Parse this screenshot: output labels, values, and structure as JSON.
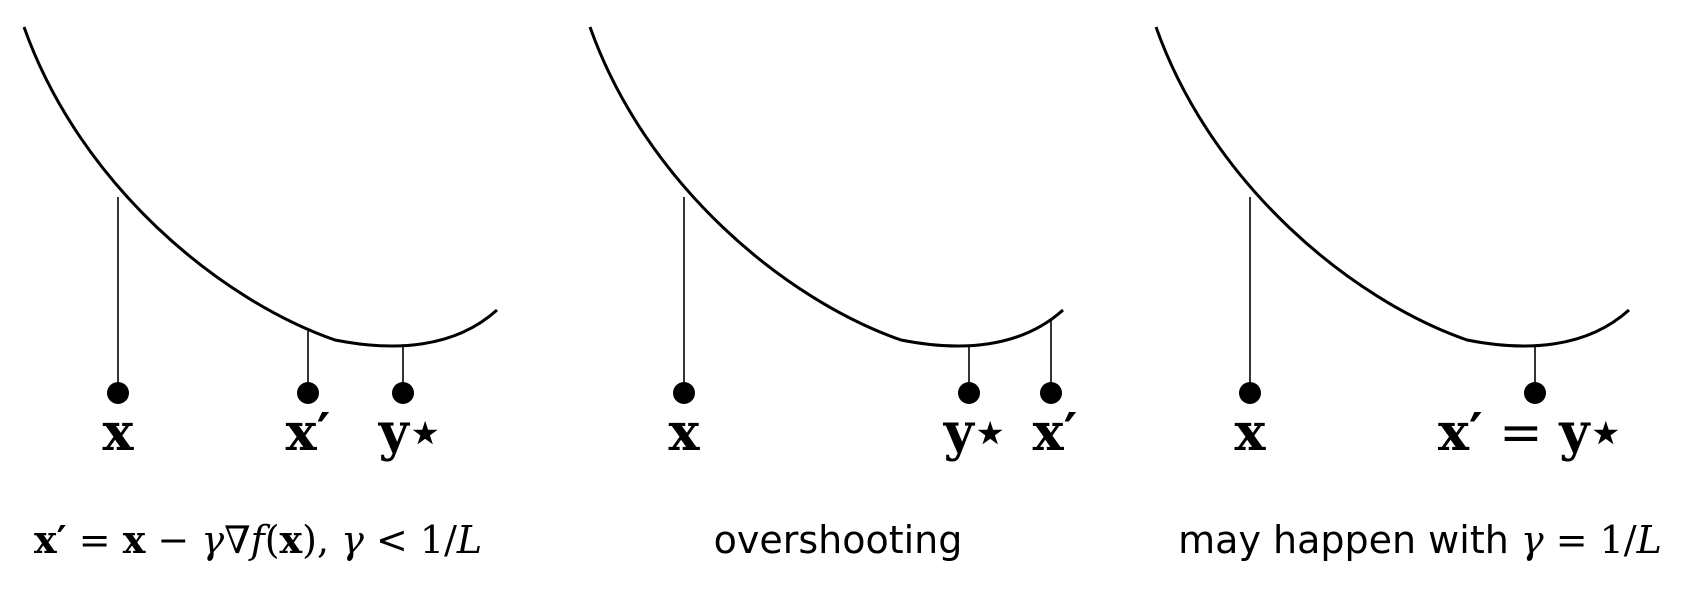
{
  "panels": [
    {
      "id": "panel-1",
      "labels": {
        "x": "x",
        "x_prime": "x′",
        "y_star": "y⋆"
      },
      "caption": {
        "pre": "x′",
        "eq": " = ",
        "x": "x",
        "minus": " − ",
        "gamma": "γ",
        "grad": "∇",
        "f": "f",
        "paren_open": "(",
        "paren_x": "x",
        "paren_close": ")",
        "comma": ", ",
        "gamma2": "γ",
        "lt": " < ",
        "frac": "1/",
        "L": "L"
      }
    },
    {
      "id": "panel-2",
      "labels": {
        "x": "x",
        "y_star": "y⋆",
        "x_prime": "x′"
      },
      "caption": {
        "text": "overshooting"
      }
    },
    {
      "id": "panel-3",
      "labels": {
        "x": "x",
        "x_prime": "x′",
        "eq": " = ",
        "y_star": "y⋆"
      },
      "caption": {
        "text": "may happen with ",
        "gamma": "γ",
        "eq": " = ",
        "frac": "1/",
        "L": "L"
      }
    }
  ]
}
